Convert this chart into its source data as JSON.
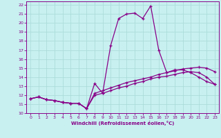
{
  "xlabel": "Windchill (Refroidissement éolien,°C)",
  "background_color": "#c8f0f0",
  "grid_color": "#a8d8d8",
  "line_color": "#880088",
  "xlim": [
    -0.5,
    23.5
  ],
  "ylim": [
    10,
    22.4
  ],
  "xticks": [
    0,
    1,
    2,
    3,
    4,
    5,
    6,
    7,
    8,
    9,
    10,
    11,
    12,
    13,
    14,
    15,
    16,
    17,
    18,
    19,
    20,
    21,
    22,
    23
  ],
  "yticks": [
    10,
    11,
    12,
    13,
    14,
    15,
    16,
    17,
    18,
    19,
    20,
    21,
    22
  ],
  "line1_x": [
    0,
    1,
    2,
    3,
    4,
    5,
    6,
    7,
    8,
    9,
    10,
    11,
    12,
    13,
    14,
    15,
    16,
    17,
    18,
    19,
    20,
    21,
    22,
    23
  ],
  "line1_y": [
    11.6,
    11.8,
    11.5,
    11.4,
    11.2,
    11.1,
    11.1,
    10.5,
    13.3,
    12.2,
    12.5,
    12.8,
    13.0,
    13.3,
    13.5,
    13.8,
    14.0,
    14.1,
    14.3,
    14.5,
    14.6,
    14.5,
    14.0,
    13.2
  ],
  "line2_x": [
    0,
    1,
    2,
    3,
    4,
    5,
    6,
    7,
    8,
    9,
    10,
    11,
    12,
    13,
    14,
    15,
    16,
    17,
    18,
    19,
    20,
    21,
    22,
    23
  ],
  "line2_y": [
    11.6,
    11.8,
    11.5,
    11.4,
    11.2,
    11.1,
    11.1,
    10.5,
    12.0,
    12.2,
    17.5,
    20.5,
    21.0,
    21.1,
    20.5,
    21.9,
    17.0,
    14.5,
    14.8,
    14.8,
    14.5,
    14.0,
    13.5,
    13.2
  ],
  "line3_x": [
    0,
    1,
    2,
    3,
    4,
    5,
    6,
    7,
    8,
    9,
    10,
    11,
    12,
    13,
    14,
    15,
    16,
    17,
    18,
    19,
    20,
    21,
    22,
    23
  ],
  "line3_y": [
    11.6,
    11.8,
    11.5,
    11.4,
    11.2,
    11.1,
    11.1,
    10.5,
    12.2,
    12.5,
    12.8,
    13.1,
    13.4,
    13.6,
    13.8,
    14.0,
    14.3,
    14.5,
    14.7,
    14.9,
    15.0,
    15.1,
    15.0,
    14.6
  ]
}
